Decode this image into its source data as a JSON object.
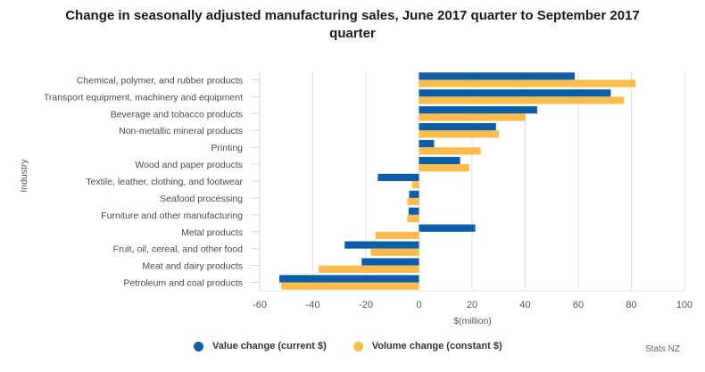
{
  "title_lines": [
    "Change in seasonally adjusted manufacturing sales, June 2017 quarter to September 2017",
    "quarter"
  ],
  "credit": "Stats NZ",
  "colors": {
    "value": "#0c5ea8",
    "volume": "#fbbc4b",
    "grid": "#e3e3e3",
    "axis": "#ccd6eb"
  },
  "chart_data": {
    "type": "bar",
    "orientation": "horizontal",
    "title": "Change in seasonally adjusted manufacturing sales, June 2017 quarter to September 2017 quarter",
    "xlabel": "$(million)",
    "ylabel": "Industry",
    "xlim": [
      -60,
      100
    ],
    "xticks": [
      -60,
      -40,
      -20,
      0,
      20,
      40,
      60,
      80,
      100
    ],
    "grid": true,
    "legend_position": "bottom",
    "categories": [
      "Chemical, polymer, and rubber products",
      "Transport equipment, machinery and equipment",
      "Beverage and tobacco products",
      "Non-metallic mineral products",
      "Printing",
      "Wood and paper products",
      "Textile, leather, clothing, and footwear",
      "Seafood processing",
      "Furniture and other manufacturing",
      "Metal products",
      "Fruit, oil, cereal, and other food",
      "Meat and dairy products",
      "Petroleum and coal products"
    ],
    "series": [
      {
        "name": "Value change (current $)",
        "color": "#0c5ea8",
        "values": [
          58.7,
          72.2,
          44.5,
          29.0,
          5.7,
          15.5,
          -15.5,
          -3.7,
          -3.9,
          21.2,
          -28.0,
          -21.6,
          -52.6
        ]
      },
      {
        "name": "Volume change (constant $)",
        "color": "#fbbc4b",
        "values": [
          81.6,
          77.2,
          40.1,
          30.0,
          23.2,
          18.9,
          -2.6,
          -4.4,
          -4.4,
          -16.4,
          -18.2,
          -37.8,
          -51.9
        ]
      }
    ]
  }
}
